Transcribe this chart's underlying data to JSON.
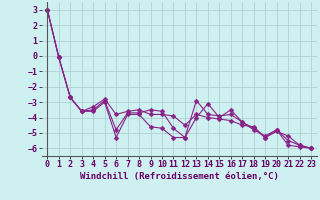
{
  "background_color": "#cff0f0",
  "grid_color": "#aacccc",
  "line_color": "#882288",
  "marker": "D",
  "marker_size": 2.5,
  "xlabel": "Windchill (Refroidissement éolien,°C)",
  "xlabel_fontsize": 6.5,
  "tick_fontsize": 6,
  "xlim": [
    -0.5,
    23.5
  ],
  "ylim": [
    -6.5,
    3.5
  ],
  "yticks": [
    -6,
    -5,
    -4,
    -3,
    -2,
    -1,
    0,
    1,
    2,
    3
  ],
  "xticks": [
    0,
    1,
    2,
    3,
    4,
    5,
    6,
    7,
    8,
    9,
    10,
    11,
    12,
    13,
    14,
    15,
    16,
    17,
    18,
    19,
    20,
    21,
    22,
    23
  ],
  "series": [
    [
      3.0,
      -0.1,
      -2.7,
      -3.6,
      -3.6,
      -3.0,
      -5.3,
      -3.8,
      -3.8,
      -4.6,
      -4.7,
      -5.3,
      -5.3,
      -4.0,
      -3.1,
      -4.0,
      -3.5,
      -4.3,
      -4.7,
      -5.3,
      -4.8,
      -5.8,
      -5.9,
      -6.0
    ],
    [
      3.0,
      -0.1,
      -2.7,
      -3.6,
      -3.5,
      -2.9,
      -4.8,
      -3.7,
      -3.7,
      -3.5,
      -3.6,
      -4.7,
      -5.3,
      -2.9,
      -3.8,
      -3.9,
      -3.8,
      -4.3,
      -4.8,
      -5.2,
      -4.8,
      -5.5,
      -5.8,
      -6.0
    ],
    [
      3.0,
      -0.1,
      -2.7,
      -3.6,
      -3.3,
      -2.8,
      -3.8,
      -3.6,
      -3.5,
      -3.8,
      -3.8,
      -3.9,
      -4.5,
      -3.8,
      -4.0,
      -4.1,
      -4.2,
      -4.5,
      -4.6,
      -5.3,
      -4.9,
      -5.2,
      -5.8,
      -6.0
    ]
  ]
}
